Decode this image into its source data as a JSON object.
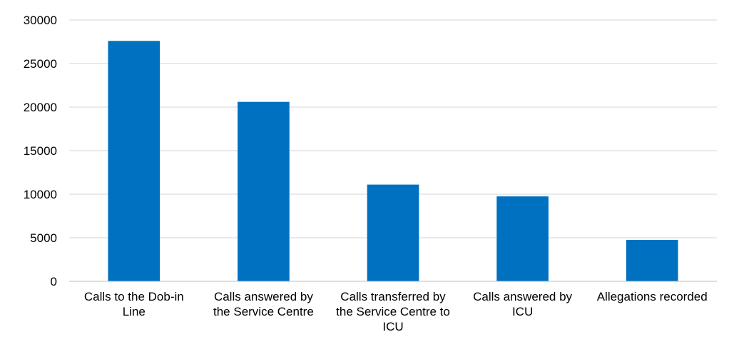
{
  "colors": {
    "bar": "#0070c0",
    "grid": "#d4d4d4",
    "axis": "#bfbfbf",
    "text": "#000000"
  },
  "chart_data": {
    "type": "bar",
    "title": "",
    "xlabel": "",
    "ylabel": "",
    "categories": [
      [
        "Calls to the Dob-in",
        "Line"
      ],
      [
        "Calls answered by",
        "the Service Centre"
      ],
      [
        "Calls transferred by",
        "the Service Centre to",
        "ICU"
      ],
      [
        "Calls answered by",
        "ICU"
      ],
      [
        "Allegations recorded"
      ]
    ],
    "values": [
      27600,
      20600,
      11100,
      9750,
      4750
    ],
    "ylim": [
      0,
      30000
    ],
    "yticks": [
      0,
      5000,
      10000,
      15000,
      20000,
      25000,
      30000
    ],
    "grid": true,
    "legend": "none"
  }
}
